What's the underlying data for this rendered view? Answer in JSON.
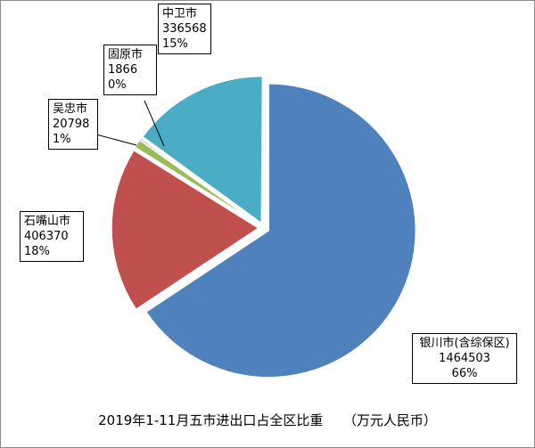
{
  "chart_data": {
    "type": "pie",
    "title": "2019年1-11月五市进出口占全区比重　　（万元人民币）",
    "exploded": true,
    "slices": [
      {
        "name": "银川市(含综保区)",
        "value": 1464503,
        "percent": "66%",
        "color": "#4f81bd"
      },
      {
        "name": "石嘴山市",
        "value": 406370,
        "percent": "18%",
        "color": "#c0504d"
      },
      {
        "name": "吴忠市",
        "value": 20798,
        "percent": "1%",
        "color": "#9bbb59"
      },
      {
        "name": "固原市",
        "value": 1866,
        "percent": "0%",
        "color": "#8064a2"
      },
      {
        "name": "中卫市",
        "value": 336568,
        "percent": "15%",
        "color": "#4bacc6"
      }
    ]
  }
}
